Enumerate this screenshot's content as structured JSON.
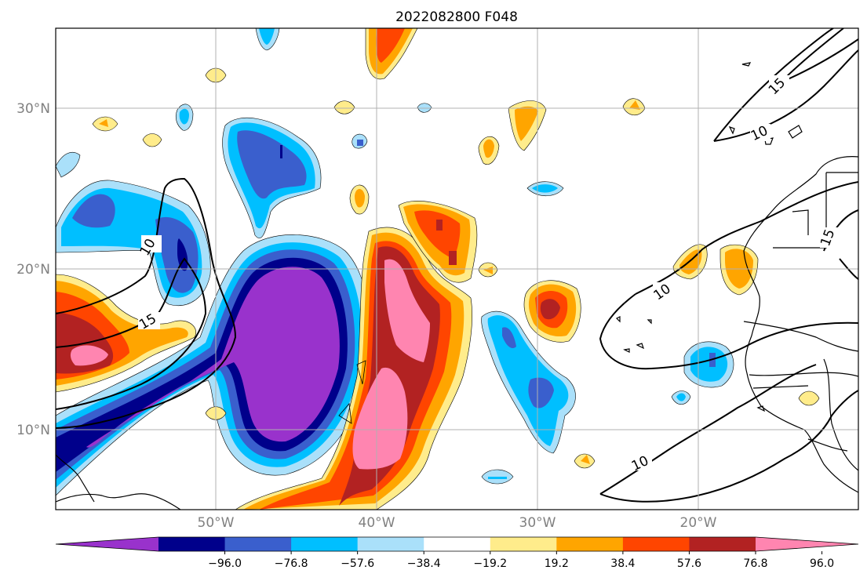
{
  "title": "2022082800 F048",
  "lat_labels": [
    "30°N",
    "20°N",
    "10°N"
  ],
  "lon_labels": [
    "50°W",
    "40°W",
    "30°W",
    "20°W"
  ],
  "colorbar": {
    "ticks": [
      "−96.0",
      "−76.8",
      "−57.6",
      "−38.4",
      "−19.2",
      "19.2",
      "38.4",
      "57.6",
      "76.8",
      "96.0"
    ],
    "colors": [
      "#9932cc",
      "#00008b",
      "#3a5fcd",
      "#00bfff",
      "#aae0fa",
      "#ffffff",
      "#ffec8b",
      "#ffa500",
      "#ff4500",
      "#b22222",
      "#ff85b0"
    ]
  },
  "contour_labels": [
    "10",
    "15",
    "10",
    "15",
    "10",
    "10",
    "15"
  ],
  "colors": {
    "purple": "#9932cc",
    "navy": "#00008b",
    "royal": "#3a5fcd",
    "sky": "#00bfff",
    "pale_blue": "#aae0fa",
    "pale_yellow": "#ffec8b",
    "orange": "#ffa500",
    "red_orange": "#ff4500",
    "firebrick": "#b22222",
    "pink": "#ff85b0",
    "grid": "#b0b0b0"
  }
}
